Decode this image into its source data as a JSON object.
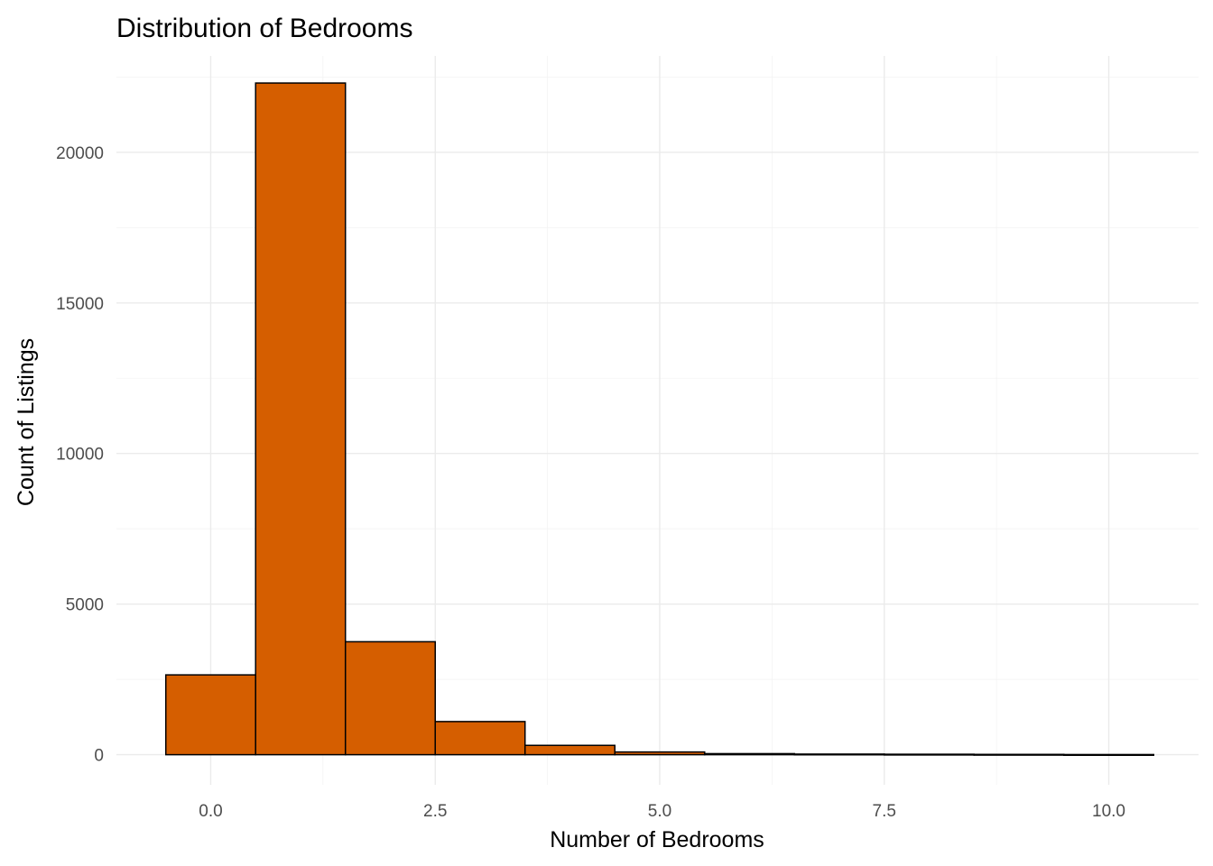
{
  "chart_data": {
    "type": "bar",
    "title": "Distribution of Bedrooms",
    "xlabel": "Number of Bedrooms",
    "ylabel": "Count of Listings",
    "bin_width": 1,
    "bins": [
      {
        "x": 0,
        "count": 2650
      },
      {
        "x": 1,
        "count": 22300
      },
      {
        "x": 2,
        "count": 3750
      },
      {
        "x": 3,
        "count": 1100
      },
      {
        "x": 4,
        "count": 310
      },
      {
        "x": 5,
        "count": 90
      },
      {
        "x": 6,
        "count": 35
      },
      {
        "x": 7,
        "count": 20
      },
      {
        "x": 8,
        "count": 15
      },
      {
        "x": 9,
        "count": 10
      },
      {
        "x": 10,
        "count": 5
      }
    ],
    "xlim": [
      -1.05,
      11.0
    ],
    "ylim": [
      -1000,
      23200
    ],
    "x_ticks": [
      0,
      2.5,
      5,
      7.5,
      10
    ],
    "x_tick_labels": [
      "0.0",
      "2.5",
      "5.0",
      "7.5",
      "10.0"
    ],
    "y_ticks": [
      0,
      5000,
      10000,
      15000,
      20000
    ],
    "y_tick_labels": [
      "0",
      "5000",
      "10000",
      "15000",
      "20000"
    ],
    "grid": true,
    "colors": {
      "bar_fill": "#D55E00",
      "bar_outline": "#000000",
      "grid_major": "#ebebeb",
      "grid_minor": "#f3f3f3"
    }
  }
}
